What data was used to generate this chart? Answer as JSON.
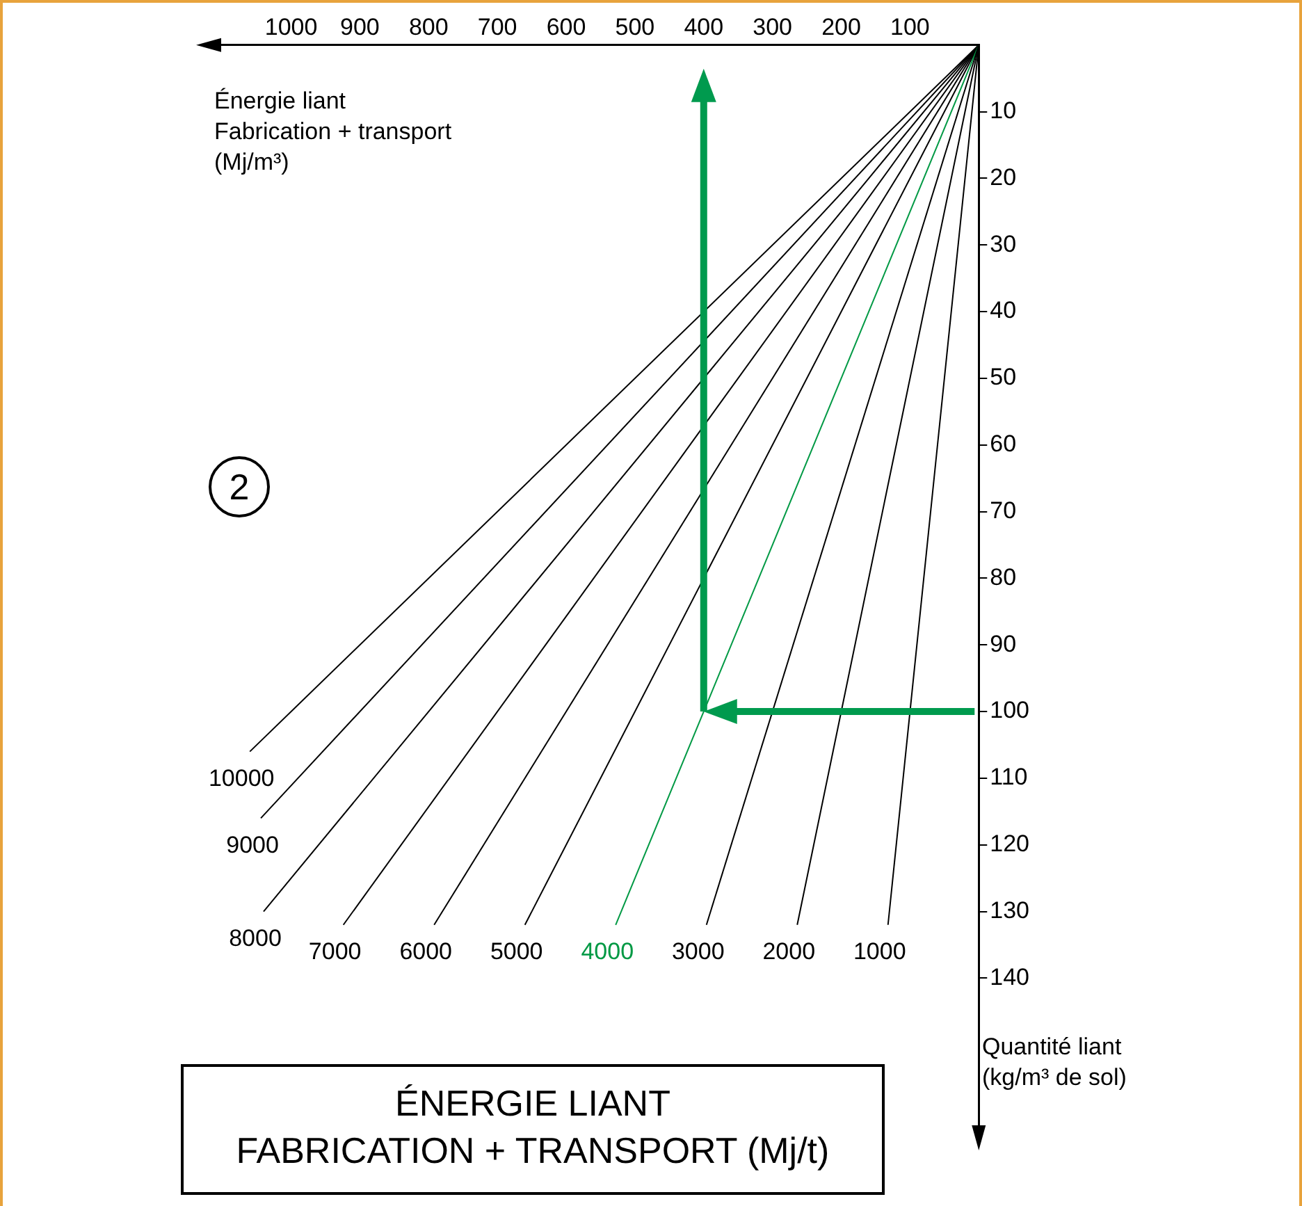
{
  "chart_data": {
    "type": "line",
    "xlabel": "Énergie liant\nFabrication + transport\n(Mj/m³)",
    "ylabel": "Quantité liant\n(kg/m³ de sol)",
    "xlim": [
      1130,
      0
    ],
    "xticks": [
      100,
      200,
      300,
      400,
      500,
      600,
      700,
      800,
      900,
      1000
    ],
    "ylim": [
      165,
      0
    ],
    "yticks": [
      10,
      20,
      30,
      40,
      50,
      60,
      70,
      80,
      90,
      100,
      110,
      120,
      130,
      140
    ],
    "grid": false,
    "legend": false,
    "annotations": [
      "2",
      "ÉNERGIE LIANT\nFABRICATION + TRANSPORT (Mj/t)"
    ],
    "series": [
      {
        "name": "1000",
        "color": "#000000",
        "x": [
          0,
          132
        ],
        "values": [
          0,
          132
        ]
      },
      {
        "name": "2000",
        "color": "#000000",
        "x": [
          0,
          264
        ],
        "values": [
          0,
          132
        ]
      },
      {
        "name": "3000",
        "color": "#000000",
        "x": [
          0,
          396
        ],
        "values": [
          0,
          132
        ]
      },
      {
        "name": "4000",
        "color": "#009944",
        "x": [
          0,
          528
        ],
        "values": [
          0,
          132
        ]
      },
      {
        "name": "5000",
        "color": "#000000",
        "x": [
          0,
          660
        ],
        "values": [
          0,
          132
        ]
      },
      {
        "name": "6000",
        "color": "#000000",
        "x": [
          0,
          792
        ],
        "values": [
          0,
          132
        ]
      },
      {
        "name": "7000",
        "color": "#000000",
        "x": [
          0,
          924
        ],
        "values": [
          0,
          132
        ]
      },
      {
        "name": "8000",
        "color": "#000000",
        "x": [
          0,
          1040
        ],
        "values": [
          0,
          130
        ]
      },
      {
        "name": "9000",
        "color": "#000000",
        "x": [
          0,
          1044
        ],
        "values": [
          0,
          116
        ]
      },
      {
        "name": "10000",
        "color": "#000000",
        "x": [
          0,
          1060
        ],
        "values": [
          0,
          106
        ]
      }
    ],
    "ref_lines": [
      {
        "axis": "y",
        "value": 100,
        "color": "#009a4e"
      },
      {
        "axis": "x",
        "value": 400,
        "color": "#009a4e"
      }
    ]
  }
}
